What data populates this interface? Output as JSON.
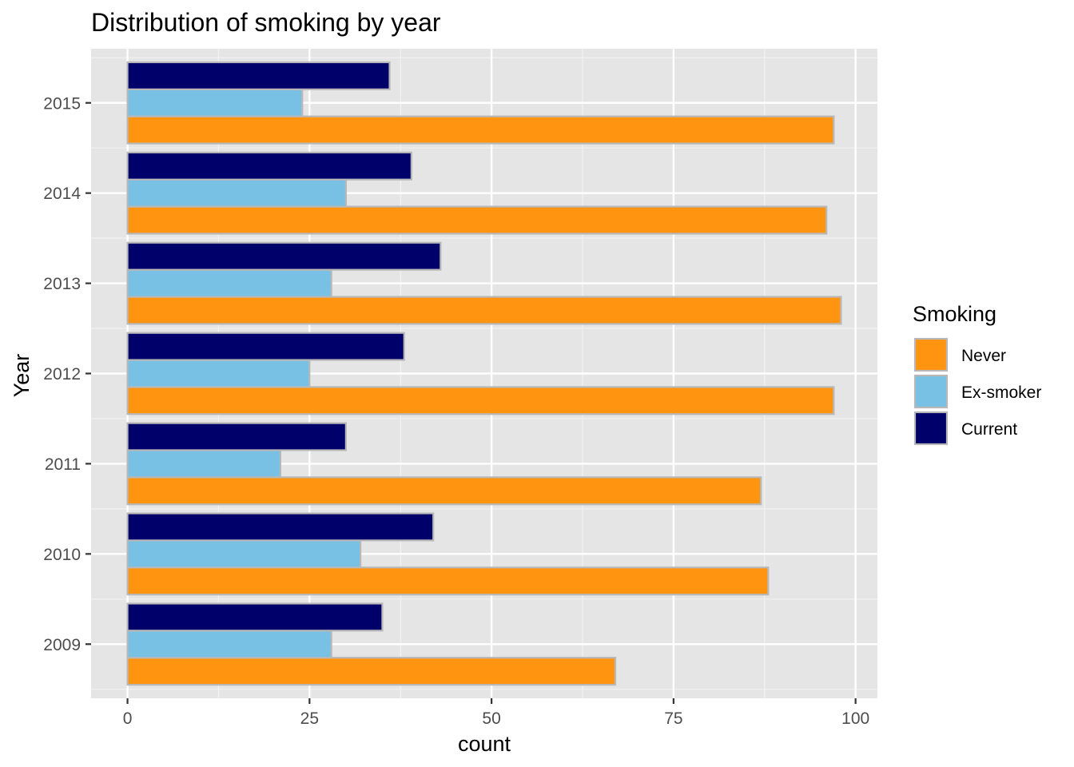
{
  "chart_data": {
    "type": "bar",
    "orientation": "horizontal",
    "title": "Distribution of smoking by year",
    "xlabel": "count",
    "ylabel": "Year",
    "xlim": [
      -5,
      103
    ],
    "x_ticks": [
      0,
      25,
      50,
      75,
      100
    ],
    "categories": [
      "2009",
      "2010",
      "2011",
      "2012",
      "2013",
      "2014",
      "2015"
    ],
    "series": [
      {
        "name": "Never",
        "color": "#ff9410",
        "values": [
          67,
          88,
          87,
          97,
          98,
          96,
          97
        ]
      },
      {
        "name": "Ex-smoker",
        "color": "#78c1e5",
        "values": [
          28,
          32,
          21,
          25,
          28,
          30,
          24
        ]
      },
      {
        "name": "Current",
        "color": "#00006b",
        "values": [
          35,
          42,
          30,
          38,
          43,
          39,
          36
        ]
      }
    ],
    "bar_outline_color": "#b8b8b8",
    "panel_background": "#e5e5e5",
    "grid": true,
    "legend": {
      "title": "Smoking",
      "position": "right"
    }
  }
}
